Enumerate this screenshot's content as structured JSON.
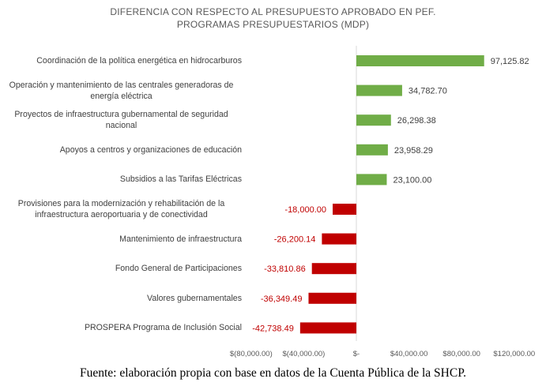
{
  "chart_data": {
    "type": "bar",
    "orientation": "horizontal",
    "title": "DIFERENCIA CON RESPECTO AL PRESUPUESTO APROBADO EN PEF.",
    "subtitle": "PROGRAMAS PRESUPUESTARIOS  (MDP)",
    "categories": [
      "Coordinación de la política energética en hidrocarburos",
      "Operación y mantenimiento de las centrales generadoras de energía eléctrica",
      "Proyectos de infraestructura gubernamental de seguridad nacional",
      "Apoyos a centros y organizaciones de educación",
      "Subsidios a las Tarifas Eléctricas",
      "Provisiones para la modernización y rehabilitación de la infraestructura aeroportuaria y de conectividad",
      "Mantenimiento de infraestructura",
      "Fondo General de Participaciones",
      "Valores gubernamentales",
      "PROSPERA Programa de Inclusión Social"
    ],
    "values": [
      97125.82,
      34782.7,
      26298.38,
      23958.29,
      23100.0,
      -18000.0,
      -26200.14,
      -33810.86,
      -36349.49,
      -42738.49
    ],
    "data_labels": [
      "97,125.82",
      "34,782.70",
      "26,298.38",
      "23,958.29",
      "23,100.00",
      "-18,000.00",
      "-26,200.14",
      "-33,810.86",
      "-36,349.49",
      "-42,738.49"
    ],
    "xlim": [
      -80000,
      120000
    ],
    "x_ticks": [
      -80000,
      -40000,
      0,
      40000,
      80000,
      120000
    ],
    "x_tick_labels": [
      "$(80,000.00)",
      "$(40,000.00)",
      "$-",
      "$40,000.00",
      "$80,000.00",
      "$120,000.00"
    ],
    "grid": false,
    "legend": "none",
    "colors": {
      "positive": "#70ad47",
      "negative": "#c00000",
      "negative_label": "#c00000"
    }
  },
  "footer": "Fuente: elaboración propia con base en datos de la Cuenta Pública de la SHCP."
}
